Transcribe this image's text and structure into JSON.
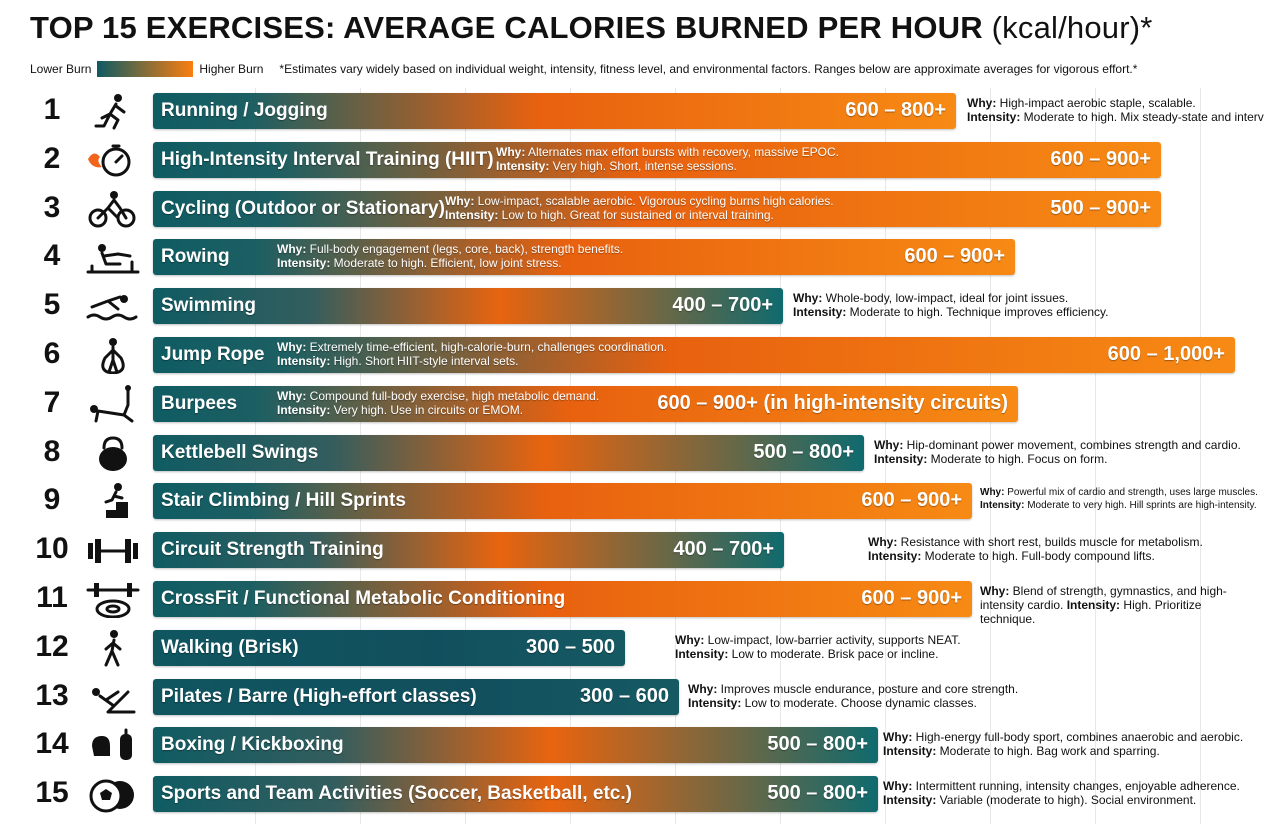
{
  "header": {
    "title": "TOP 15 EXERCISES: AVERAGE CALORIES BURNED PER HOUR",
    "unit": "(kcal/hour)*",
    "legend_low": "Lower Burn",
    "legend_high": "Higher Burn",
    "footnote": "*Estimates vary widely based on individual weight, intensity, fitness level, and environmental factors. Ranges below are approximate averages for vigorous effort.*"
  },
  "colors": {
    "low": "#0e5a63",
    "high": "#f97f10"
  },
  "labels": {
    "why": "Why:",
    "intensity": "Intensity:"
  },
  "chart_data": {
    "type": "bar",
    "orientation": "horizontal",
    "title": "TOP 15 EXERCISES: AVERAGE CALORIES BURNED PER HOUR",
    "unit": "kcal/hour",
    "xlim": [
      0,
      1000
    ],
    "grid": true,
    "legend": "top-left",
    "items": [
      {
        "rank": "1",
        "icon": "runner-icon",
        "name": "Running / Jogging",
        "range": "600 – 800+",
        "low": 600,
        "high": 800,
        "why": "High-impact aerobic staple, scalable.",
        "intensity": "Moderate to high. Mix steady-state and intervals."
      },
      {
        "rank": "2",
        "icon": "stopwatch-icon",
        "name": "High-Intensity Interval Training (HIIT)",
        "range": "600 – 900+",
        "low": 600,
        "high": 900,
        "why": "Alternates max effort bursts with recovery, massive EPOC.",
        "intensity": "Very high. Short, intense sessions."
      },
      {
        "rank": "3",
        "icon": "cyclist-icon",
        "name": "Cycling (Outdoor or Stationary)",
        "range": "500 – 900+",
        "low": 500,
        "high": 900,
        "why": "Low-impact, scalable aerobic. Vigorous cycling burns high calories.",
        "intensity": "Low to high. Great for sustained or interval training."
      },
      {
        "rank": "4",
        "icon": "rowing-icon",
        "name": "Rowing",
        "range": "600 – 900+",
        "low": 600,
        "high": 900,
        "why": "Full-body engagement (legs, core, back), strength benefits.",
        "intensity": "Moderate to high. Efficient, low joint stress."
      },
      {
        "rank": "5",
        "icon": "swimmer-icon",
        "name": "Swimming",
        "range": "400 – 700+",
        "low": 400,
        "high": 700,
        "why": "Whole-body, low-impact, ideal for joint issues.",
        "intensity": "Moderate to high. Technique improves efficiency."
      },
      {
        "rank": "6",
        "icon": "jump-rope-icon",
        "name": "Jump Rope",
        "range": "600 – 1,000+",
        "low": 600,
        "high": 1000,
        "why": "Extremely time-efficient, high-calorie-burn, challenges coordination.",
        "intensity": "High. Short HIIT-style interval sets."
      },
      {
        "rank": "7",
        "icon": "burpee-icon",
        "name": "Burpees",
        "range": "600 – 900+ (in high-intensity circuits)",
        "low": 600,
        "high": 900,
        "why": "Compound full-body exercise, high metabolic demand.",
        "intensity": "Very high. Use in circuits or EMOM."
      },
      {
        "rank": "8",
        "icon": "kettlebell-icon",
        "name": "Kettlebell Swings",
        "range": "500 – 800+",
        "low": 500,
        "high": 800,
        "why": "Hip-dominant power movement, combines strength and cardio.",
        "intensity": "Moderate to high. Focus on form."
      },
      {
        "rank": "9",
        "icon": "stair-climber-icon",
        "name": "Stair Climbing / Hill Sprints",
        "range": "600 – 900+",
        "low": 600,
        "high": 900,
        "why": "Powerful mix of cardio and strength, uses large muscles.",
        "intensity": "Moderate to very high. Hill sprints are high-intensity."
      },
      {
        "rank": "10",
        "icon": "dumbbell-icon",
        "name": "Circuit Strength Training",
        "range": "400 – 700+",
        "low": 400,
        "high": 700,
        "why": "Resistance with short rest, builds muscle for metabolism.",
        "intensity": "Moderate to high. Full-body compound lifts."
      },
      {
        "rank": "11",
        "icon": "tire-barbell-icon",
        "name": "CrossFit / Functional Metabolic Conditioning",
        "range": "600 – 900+",
        "low": 600,
        "high": 900,
        "why": "Blend of strength, gymnastics, and high-intensity cardio.",
        "intensity": "High. Prioritize technique."
      },
      {
        "rank": "12",
        "icon": "walker-icon",
        "name": "Walking (Brisk)",
        "range": "300 – 500",
        "low": 300,
        "high": 500,
        "why": "Low-impact, low-barrier activity, supports NEAT.",
        "intensity": "Low to moderate. Brisk pace or incline."
      },
      {
        "rank": "13",
        "icon": "pilates-icon",
        "name": "Pilates / Barre (High-effort classes)",
        "range": "300 – 600",
        "low": 300,
        "high": 600,
        "why": "Improves muscle endurance, posture and core strength.",
        "intensity": "Low to moderate. Choose dynamic classes."
      },
      {
        "rank": "14",
        "icon": "boxing-glove-icon",
        "name": "Boxing / Kickboxing",
        "range": "500 – 800+",
        "low": 500,
        "high": 800,
        "why": "High-energy full-body sport, combines anaerobic and aerobic.",
        "intensity": "Moderate to high. Bag work and sparring."
      },
      {
        "rank": "15",
        "icon": "balls-icon",
        "name": "Sports and Team Activities (Soccer, Basketball, etc.)",
        "range": "500 – 800+",
        "low": 500,
        "high": 800,
        "why": "Intermittent running, intensity changes, enjoyable adherence.",
        "intensity": "Variable (moderate to high). Social environment."
      }
    ]
  }
}
